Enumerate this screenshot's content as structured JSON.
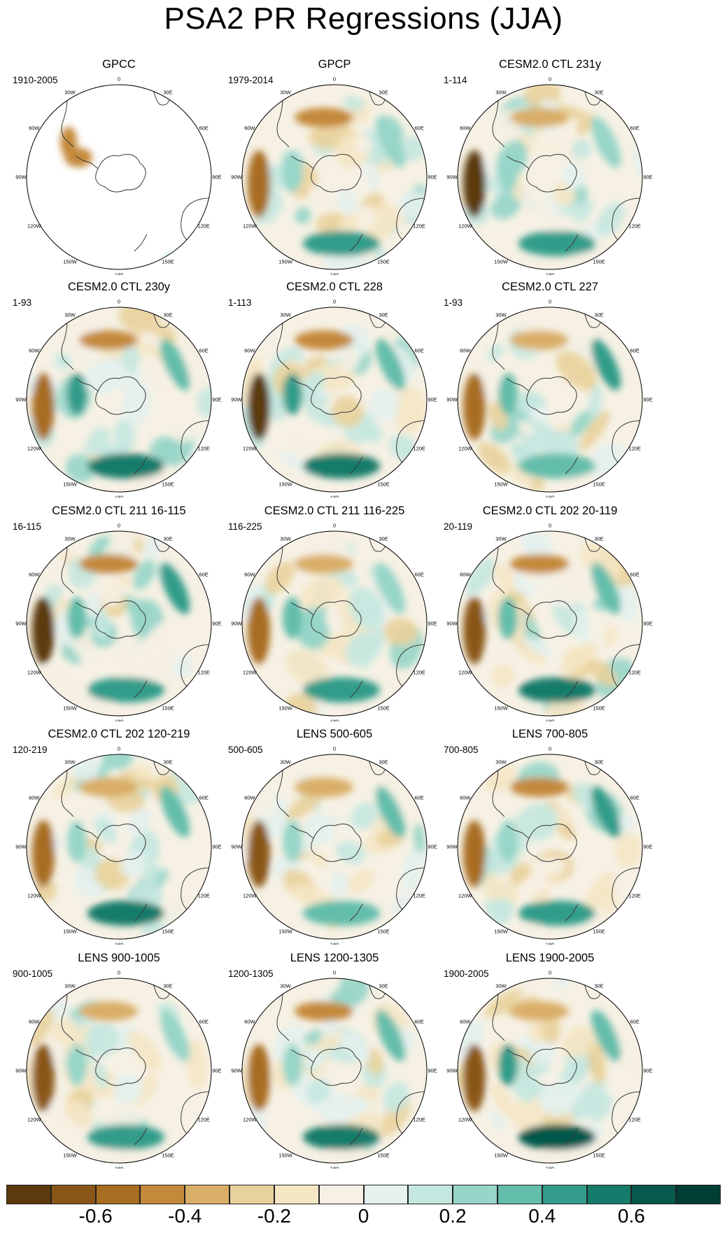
{
  "title": "PSA2 PR Regressions (JJA)",
  "chart_data": {
    "type": "heatmap",
    "panels": [
      {
        "title": "GPCC",
        "period": "1910-2005"
      },
      {
        "title": "GPCP",
        "period": "1979-2014"
      },
      {
        "title": "CESM2.0 CTL 231y",
        "period": "1-114"
      },
      {
        "title": "CESM2.0 CTL 230y",
        "period": "1-93"
      },
      {
        "title": "CESM2.0 CTL 228",
        "period": "1-113"
      },
      {
        "title": "CESM2.0 CTL 227",
        "period": "1-93"
      },
      {
        "title": "CESM2.0 CTL 211 16-115",
        "period": "16-115"
      },
      {
        "title": "CESM2.0 CTL 211 116-225",
        "period": "116-225"
      },
      {
        "title": "CESM2.0 CTL 202 20-119",
        "period": "20-119"
      },
      {
        "title": "CESM2.0 CTL 202 120-219",
        "period": "120-219"
      },
      {
        "title": "LENS 500-605",
        "period": "500-605"
      },
      {
        "title": "LENS 700-805",
        "period": "700-805"
      },
      {
        "title": "LENS 900-1005",
        "period": "900-1005"
      },
      {
        "title": "LENS 1200-1305",
        "period": "1200-1305"
      },
      {
        "title": "LENS 1900-2005",
        "period": "1900-2005"
      }
    ],
    "longitude_labels": [
      "0",
      "30E",
      "60E",
      "90E",
      "120E",
      "150E",
      "180",
      "150W",
      "120W",
      "90W",
      "60W",
      "30W"
    ],
    "colorbar": {
      "colors": [
        "#5c3a0e",
        "#8a5618",
        "#a86d22",
        "#c4893a",
        "#d9ae67",
        "#e9d19b",
        "#f5e6c4",
        "#f6f1e4",
        "#e4f1ee",
        "#c4e7e0",
        "#96d5c8",
        "#63bdab",
        "#339c8a",
        "#157b6a",
        "#06594c",
        "#003d33"
      ],
      "tick_labels": [
        "-0.6",
        "-0.4",
        "-0.2",
        "0",
        "0.2",
        "0.4",
        "0.6"
      ],
      "tick_values": [
        -0.6,
        -0.4,
        -0.2,
        0,
        0.2,
        0.4,
        0.6
      ]
    }
  }
}
